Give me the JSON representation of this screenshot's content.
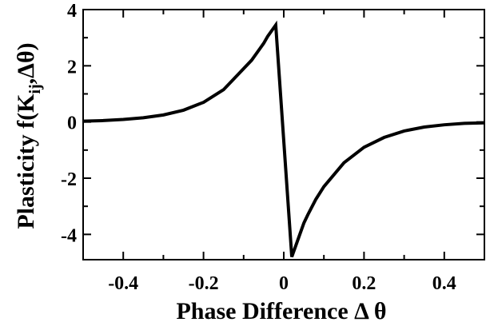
{
  "chart_data": {
    "type": "line",
    "xlabel": "Phase Difference Δ θ",
    "ylabel": {
      "prefix": "Plasticity f(K",
      "subscript": "ij",
      "suffix": ",Δθ)"
    },
    "xlim": [
      -0.5,
      0.5
    ],
    "ylim": [
      -4.9,
      4.0
    ],
    "x_ticks": [
      -0.4,
      -0.2,
      0,
      0.2,
      0.4
    ],
    "x_tick_labels": [
      "-0.4",
      "-0.2",
      "0",
      "0.2",
      "0.4"
    ],
    "y_ticks": [
      -4,
      -2,
      0,
      2,
      4
    ],
    "y_tick_labels": [
      "-4",
      "-2",
      "0",
      "2",
      "4"
    ],
    "grid": false,
    "series": [
      {
        "x": [
          -0.5,
          -0.45,
          -0.4,
          -0.35,
          -0.3,
          -0.25,
          -0.2,
          -0.15,
          -0.1,
          -0.08,
          -0.06,
          -0.05,
          -0.04,
          -0.03,
          -0.02,
          0.02,
          0.03,
          0.04,
          0.05,
          0.06,
          0.08,
          0.1,
          0.15,
          0.2,
          0.25,
          0.3,
          0.35,
          0.4,
          0.45,
          0.5
        ],
        "y": [
          0.03,
          0.05,
          0.09,
          0.15,
          0.25,
          0.42,
          0.7,
          1.15,
          1.9,
          2.2,
          2.6,
          2.8,
          3.05,
          3.25,
          3.45,
          -4.8,
          -4.4,
          -4.0,
          -3.6,
          -3.3,
          -2.75,
          -2.3,
          -1.45,
          -0.9,
          -0.55,
          -0.32,
          -0.18,
          -0.1,
          -0.05,
          -0.03
        ]
      }
    ]
  }
}
